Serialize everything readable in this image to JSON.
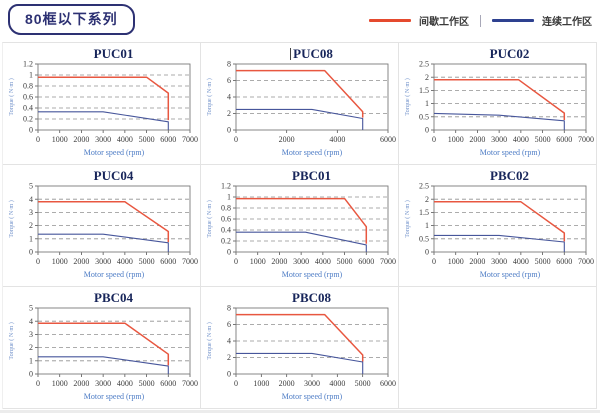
{
  "page": {
    "title": "80框以下系列"
  },
  "legend": {
    "intermittent_label": "间歇工作区",
    "continuous_label": "连续工作区",
    "intermittent_color": "#e54a2e",
    "continuous_color": "#2e4190"
  },
  "colors": {
    "intermittent": "#e85740",
    "continuous": "#47569b",
    "plot_border": "#7a7a7a",
    "gridline": "#909090",
    "tick_text": "#3d3d3d",
    "axis_label": "#6e8fc9",
    "chart_title": "#17255a",
    "header_accent": "#2d3173"
  },
  "chart_data": [
    {
      "type": "line",
      "title": "PUC01",
      "xlabel": "Motor speed (rpm)",
      "ylabel": "Torque ( N·m )",
      "xlim": [
        0,
        7000
      ],
      "xtick_step": 1000,
      "ylim": [
        0,
        1.2
      ],
      "ytick_step": 0.2,
      "grid": "horizontal-dashed",
      "legend_position": "none",
      "series": [
        {
          "name": "间歇工作区",
          "color_key": "intermittent",
          "points": [
            [
              0,
              0.96
            ],
            [
              5000,
              0.96
            ],
            [
              6000,
              0.67
            ],
            [
              6000,
              0.18
            ]
          ]
        },
        {
          "name": "连续工作区",
          "color_key": "continuous",
          "points": [
            [
              0,
              0.33
            ],
            [
              3000,
              0.33
            ],
            [
              6000,
              0.15
            ],
            [
              6000,
              0
            ]
          ]
        }
      ]
    },
    {
      "type": "line",
      "title": "PUC08",
      "xlabel": "Motor speed (rpm)",
      "ylabel": "Torque ( N·m )",
      "xlim": [
        0,
        6000
      ],
      "xtick_step": 2000,
      "ylim": [
        0,
        8
      ],
      "ytick_step": 2,
      "grid": "horizontal-dashed",
      "legend_position": "none",
      "series": [
        {
          "name": "间歇工作区",
          "color_key": "intermittent",
          "points": [
            [
              0,
              7.2
            ],
            [
              3500,
              7.2
            ],
            [
              5000,
              2.2
            ],
            [
              5000,
              1.5
            ]
          ]
        },
        {
          "name": "连续工作区",
          "color_key": "continuous",
          "points": [
            [
              0,
              2.5
            ],
            [
              3000,
              2.5
            ],
            [
              5000,
              1.4
            ],
            [
              5000,
              0
            ]
          ]
        }
      ]
    },
    {
      "type": "line",
      "title": "PUC02",
      "xlabel": "Motor speed (rpm)",
      "ylabel": "Torque ( N·m )",
      "xlim": [
        0,
        7000
      ],
      "xtick_step": 1000,
      "ylim": [
        0,
        2.5
      ],
      "ytick_step": 0.5,
      "grid": "horizontal-dashed",
      "legend_position": "none",
      "series": [
        {
          "name": "间歇工作区",
          "color_key": "intermittent",
          "points": [
            [
              0,
              1.9
            ],
            [
              3900,
              1.9
            ],
            [
              6000,
              0.64
            ],
            [
              6000,
              0.38
            ]
          ]
        },
        {
          "name": "连续工作区",
          "color_key": "continuous",
          "points": [
            [
              0,
              0.63
            ],
            [
              3000,
              0.56
            ],
            [
              6000,
              0.35
            ],
            [
              6000,
              0
            ]
          ]
        }
      ]
    },
    {
      "type": "line",
      "title": "PUC04",
      "xlabel": "Motor speed (rpm)",
      "ylabel": "Torque ( N·m )",
      "xlim": [
        0,
        7000
      ],
      "xtick_step": 1000,
      "ylim": [
        0,
        5
      ],
      "ytick_step": 1,
      "grid": "horizontal-dashed",
      "legend_position": "none",
      "series": [
        {
          "name": "间歇工作区",
          "color_key": "intermittent",
          "points": [
            [
              0,
              3.8
            ],
            [
              4000,
              3.8
            ],
            [
              6000,
              1.55
            ],
            [
              6000,
              0.75
            ]
          ]
        },
        {
          "name": "连续工作区",
          "color_key": "continuous",
          "points": [
            [
              0,
              1.35
            ],
            [
              3000,
              1.35
            ],
            [
              6000,
              0.7
            ],
            [
              6000,
              0
            ]
          ]
        }
      ]
    },
    {
      "type": "line",
      "title": "PBC01",
      "xlabel": "Motor speed (rpm)",
      "ylabel": "Torque ( N·m )",
      "xlim": [
        0,
        7000
      ],
      "xtick_step": 1000,
      "ylim": [
        0,
        1.2
      ],
      "ytick_step": 0.2,
      "grid": "horizontal-dashed",
      "legend_position": "none",
      "series": [
        {
          "name": "间歇工作区",
          "color_key": "intermittent",
          "points": [
            [
              0,
              0.97
            ],
            [
              5000,
              0.97
            ],
            [
              6000,
              0.46
            ],
            [
              6000,
              0.15
            ]
          ]
        },
        {
          "name": "连续工作区",
          "color_key": "continuous",
          "points": [
            [
              0,
              0.36
            ],
            [
              3200,
              0.36
            ],
            [
              6000,
              0.13
            ],
            [
              6000,
              0
            ]
          ]
        }
      ]
    },
    {
      "type": "line",
      "title": "PBC02",
      "xlabel": "Motor speed (rpm)",
      "ylabel": "Torque ( N·m )",
      "xlim": [
        0,
        7000
      ],
      "xtick_step": 1000,
      "ylim": [
        0,
        2.5
      ],
      "ytick_step": 0.5,
      "grid": "horizontal-dashed",
      "legend_position": "none",
      "series": [
        {
          "name": "间歇工作区",
          "color_key": "intermittent",
          "points": [
            [
              0,
              1.9
            ],
            [
              4000,
              1.9
            ],
            [
              6000,
              0.72
            ],
            [
              6000,
              0.4
            ]
          ]
        },
        {
          "name": "连续工作区",
          "color_key": "continuous",
          "points": [
            [
              0,
              0.63
            ],
            [
              3000,
              0.63
            ],
            [
              6000,
              0.38
            ],
            [
              6000,
              0
            ]
          ]
        }
      ]
    },
    {
      "type": "line",
      "title": "PBC04",
      "xlabel": "Motor speed (rpm)",
      "ylabel": "Torque ( N·m )",
      "xlim": [
        0,
        7000
      ],
      "xtick_step": 1000,
      "ylim": [
        0,
        5
      ],
      "ytick_step": 1,
      "grid": "horizontal-dashed",
      "legend_position": "none",
      "series": [
        {
          "name": "间歇工作区",
          "color_key": "intermittent",
          "points": [
            [
              0,
              3.85
            ],
            [
              4000,
              3.85
            ],
            [
              6000,
              1.5
            ],
            [
              6000,
              0.65
            ]
          ]
        },
        {
          "name": "连续工作区",
          "color_key": "continuous",
          "points": [
            [
              0,
              1.3
            ],
            [
              3000,
              1.3
            ],
            [
              6000,
              0.6
            ],
            [
              6000,
              0
            ]
          ]
        }
      ]
    },
    {
      "type": "line",
      "title": "PBC08",
      "xlabel": "Motor speed (rpm)",
      "ylabel": "Torque ( N·m )",
      "xlim": [
        0,
        6000
      ],
      "xtick_step": 1000,
      "ylim": [
        0,
        8
      ],
      "ytick_step": 2,
      "grid": "horizontal-dashed",
      "legend_position": "none",
      "series": [
        {
          "name": "间歇工作区",
          "color_key": "intermittent",
          "points": [
            [
              0,
              7.2
            ],
            [
              3500,
              7.2
            ],
            [
              5000,
              2.3
            ],
            [
              5000,
              1.5
            ]
          ]
        },
        {
          "name": "连续工作区",
          "color_key": "continuous",
          "points": [
            [
              0,
              2.5
            ],
            [
              3000,
              2.5
            ],
            [
              5000,
              1.45
            ],
            [
              5000,
              0
            ]
          ]
        }
      ]
    }
  ]
}
